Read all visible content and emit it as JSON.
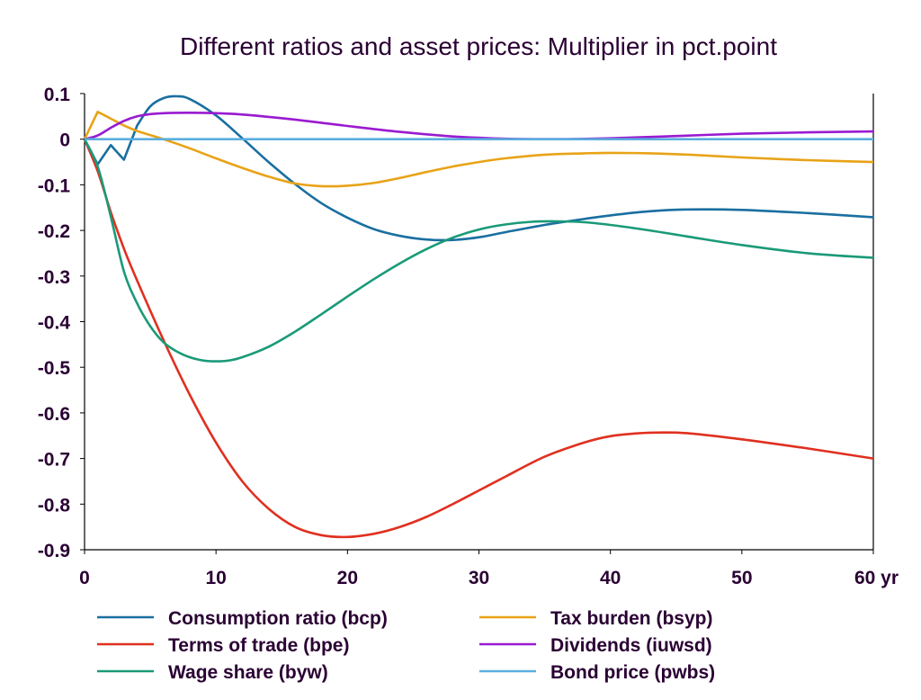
{
  "chart_data": {
    "type": "line",
    "title": "Different ratios and asset prices: Multiplier in pct.point",
    "xlabel": "",
    "ylabel": "",
    "x_unit_label": "yr",
    "xlim": [
      0,
      60
    ],
    "ylim": [
      -0.9,
      0.1
    ],
    "x_ticks": [
      0,
      10,
      20,
      30,
      40,
      50,
      60
    ],
    "y_ticks": [
      0.1,
      0,
      -0.1,
      -0.2,
      -0.3,
      -0.4,
      -0.5,
      -0.6,
      -0.7,
      -0.8,
      -0.9
    ],
    "x_tick_labels": [
      "0",
      "10",
      "20",
      "30",
      "40",
      "50",
      "60 yr"
    ],
    "y_tick_labels": [
      "0.1",
      "0",
      "-0.1",
      "-0.2",
      "-0.3",
      "-0.4",
      "-0.5",
      "-0.6",
      "-0.7",
      "-0.8",
      "-0.9"
    ],
    "grid": false,
    "legend_position": "bottom",
    "series": [
      {
        "name": "Consumption ratio (bcp)",
        "color": "#1a6fa0",
        "x": [
          0,
          1,
          2,
          3,
          4,
          5,
          6,
          7,
          8,
          10,
          12,
          14,
          16,
          18,
          20,
          22,
          24,
          26,
          28,
          30,
          32,
          35,
          38,
          40,
          43,
          46,
          50,
          55,
          60
        ],
        "y": [
          0,
          -0.055,
          -0.013,
          -0.045,
          0.03,
          0.072,
          0.09,
          0.094,
          0.088,
          0.052,
          0.002,
          -0.05,
          -0.098,
          -0.14,
          -0.172,
          -0.197,
          -0.212,
          -0.22,
          -0.221,
          -0.215,
          -0.204,
          -0.188,
          -0.175,
          -0.167,
          -0.158,
          -0.154,
          -0.155,
          -0.162,
          -0.171
        ]
      },
      {
        "name": "Tax burden (bsyp)",
        "color": "#e8a317",
        "x": [
          0,
          1,
          2,
          3,
          4,
          6,
          8,
          10,
          12,
          14,
          16,
          18,
          20,
          22,
          24,
          26,
          28,
          30,
          32,
          35,
          38,
          40,
          43,
          46,
          50,
          55,
          60
        ],
        "y": [
          0,
          0.06,
          0.045,
          0.03,
          0.018,
          0.0,
          -0.02,
          -0.042,
          -0.063,
          -0.082,
          -0.097,
          -0.103,
          -0.102,
          -0.096,
          -0.085,
          -0.072,
          -0.06,
          -0.05,
          -0.042,
          -0.034,
          -0.031,
          -0.03,
          -0.031,
          -0.034,
          -0.04,
          -0.046,
          -0.05
        ]
      },
      {
        "name": "Terms of trade (bpe)",
        "color": "#e03020",
        "x": [
          0,
          1,
          2,
          3,
          4,
          6,
          8,
          10,
          12,
          14,
          16,
          18,
          20,
          22,
          24,
          26,
          28,
          30,
          32,
          35,
          38,
          40,
          42,
          44,
          46,
          50,
          55,
          60
        ],
        "y": [
          0,
          -0.07,
          -0.16,
          -0.24,
          -0.31,
          -0.44,
          -0.56,
          -0.665,
          -0.75,
          -0.81,
          -0.85,
          -0.868,
          -0.872,
          -0.865,
          -0.85,
          -0.828,
          -0.8,
          -0.77,
          -0.74,
          -0.696,
          -0.665,
          -0.651,
          -0.645,
          -0.643,
          -0.645,
          -0.658,
          -0.678,
          -0.7
        ]
      },
      {
        "name": "Dividends (iuwsd)",
        "color": "#9a1ad0",
        "x": [
          0,
          1,
          2,
          3,
          4,
          5,
          6,
          8,
          10,
          12,
          14,
          16,
          18,
          20,
          24,
          28,
          32,
          36,
          40,
          45,
          50,
          55,
          60
        ],
        "y": [
          0,
          0.008,
          0.025,
          0.04,
          0.05,
          0.055,
          0.057,
          0.058,
          0.057,
          0.054,
          0.049,
          0.043,
          0.036,
          0.029,
          0.016,
          0.006,
          0.001,
          0.0,
          0.002,
          0.007,
          0.012,
          0.015,
          0.017
        ]
      },
      {
        "name": "Wage share (byw)",
        "color": "#1a9a78",
        "x": [
          0,
          1,
          2,
          3,
          4,
          5,
          6,
          7,
          8,
          9,
          10,
          11,
          12,
          14,
          16,
          18,
          20,
          22,
          24,
          26,
          28,
          30,
          32,
          34,
          36,
          38,
          40,
          43,
          46,
          50,
          55,
          60
        ],
        "y": [
          0,
          -0.06,
          -0.17,
          -0.29,
          -0.36,
          -0.41,
          -0.445,
          -0.465,
          -0.478,
          -0.485,
          -0.487,
          -0.485,
          -0.478,
          -0.455,
          -0.422,
          -0.384,
          -0.345,
          -0.307,
          -0.272,
          -0.241,
          -0.216,
          -0.198,
          -0.187,
          -0.181,
          -0.18,
          -0.182,
          -0.188,
          -0.2,
          -0.214,
          -0.232,
          -0.25,
          -0.26
        ]
      },
      {
        "name": "Bond price (pwbs)",
        "color": "#5aaede",
        "x": [
          0,
          60
        ],
        "y": [
          0,
          0
        ]
      }
    ],
    "legend_order": [
      "Consumption ratio (bcp)",
      "Tax burden (bsyp)",
      "Terms of trade (bpe)",
      "Dividends (iuwsd)",
      "Wage share (byw)",
      "Bond price (pwbs)"
    ]
  }
}
